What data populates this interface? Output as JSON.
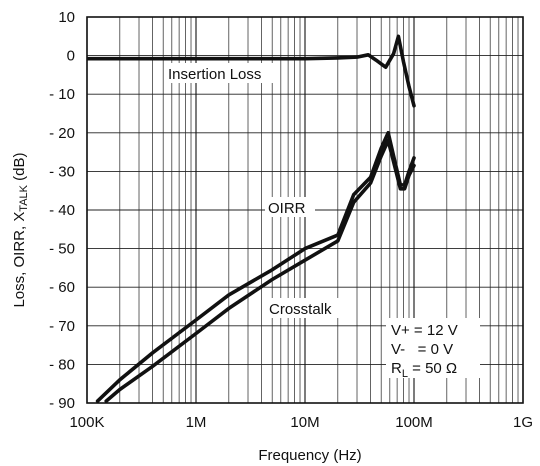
{
  "chart_data": {
    "type": "line",
    "title": "",
    "xlabel": "Frequency (Hz)",
    "ylabel_parts": [
      {
        "text": "Loss, OIRR, X",
        "sub": false
      },
      {
        "text": "TALK",
        "sub": true
      },
      {
        "text": "  (dB)",
        "sub": false
      }
    ],
    "xscale": "log",
    "xlim": [
      100000,
      1000000000
    ],
    "ylim": [
      -90,
      10
    ],
    "grid": true,
    "x_ticks": [
      {
        "value": 100000,
        "label": "100K"
      },
      {
        "value": 1000000,
        "label": "1M"
      },
      {
        "value": 10000000,
        "label": "10M"
      },
      {
        "value": 100000000,
        "label": "100M"
      },
      {
        "value": 1000000000,
        "label": "1G"
      }
    ],
    "y_ticks": [
      {
        "value": 10,
        "label": "10"
      },
      {
        "value": 0,
        "label": "0"
      },
      {
        "value": -10,
        "label": "- 10"
      },
      {
        "value": -20,
        "label": "- 20"
      },
      {
        "value": -30,
        "label": "- 30"
      },
      {
        "value": -40,
        "label": "- 40"
      },
      {
        "value": -50,
        "label": "- 50"
      },
      {
        "value": -60,
        "label": "- 60"
      },
      {
        "value": -70,
        "label": "- 70"
      },
      {
        "value": -80,
        "label": "- 80"
      },
      {
        "value": -90,
        "label": "- 90"
      }
    ],
    "series": [
      {
        "name": "Insertion Loss",
        "color": "#111111",
        "x": [
          100000,
          1000000,
          10000000,
          20000000,
          30000000,
          38000000,
          45000000,
          55000000,
          65000000,
          72000000,
          80000000,
          90000000,
          100000000
        ],
        "y": [
          -0.8,
          -0.8,
          -0.8,
          -0.6,
          -0.4,
          0.2,
          -1.2,
          -3.0,
          0.5,
          5.0,
          -1.5,
          -8.0,
          -13.0
        ]
      },
      {
        "name": "OIRR",
        "color": "#111111",
        "x": [
          125000,
          200000,
          400000,
          1000000,
          2000000,
          5000000,
          10000000,
          20000000,
          28000000,
          40000000,
          50000000,
          58000000,
          65000000,
          75000000,
          82000000,
          90000000,
          100000000
        ],
        "y": [
          -89.5,
          -84.0,
          -77.0,
          -68.5,
          -62.0,
          -55.5,
          -50.0,
          -46.5,
          -36.0,
          -31.5,
          -24.0,
          -20.0,
          -26.0,
          -33.5,
          -33.5,
          -30.0,
          -26.5
        ]
      },
      {
        "name": "Crosstalk",
        "color": "#111111",
        "x": [
          150000,
          200000,
          400000,
          1000000,
          2000000,
          5000000,
          10000000,
          20000000,
          28000000,
          40000000,
          50000000,
          58000000,
          65000000,
          75000000,
          82000000,
          90000000,
          100000000
        ],
        "y": [
          -89.5,
          -86.5,
          -80.5,
          -72.0,
          -65.5,
          -58.0,
          -53.0,
          -48.0,
          -38.0,
          -33.0,
          -26.0,
          -22.0,
          -27.5,
          -34.5,
          -34.5,
          -31.0,
          -28.5
        ]
      }
    ],
    "annotations": {
      "insertion_loss": "Insertion Loss",
      "oirr": "OIRR",
      "crosstalk": "Crosstalk",
      "conditions": {
        "line1": "V+ = 12 V",
        "line2": "V-   = 0 V",
        "line3_prefix": "R",
        "line3_sub": "L",
        "line3_suffix": " = 50 Ω"
      }
    }
  }
}
